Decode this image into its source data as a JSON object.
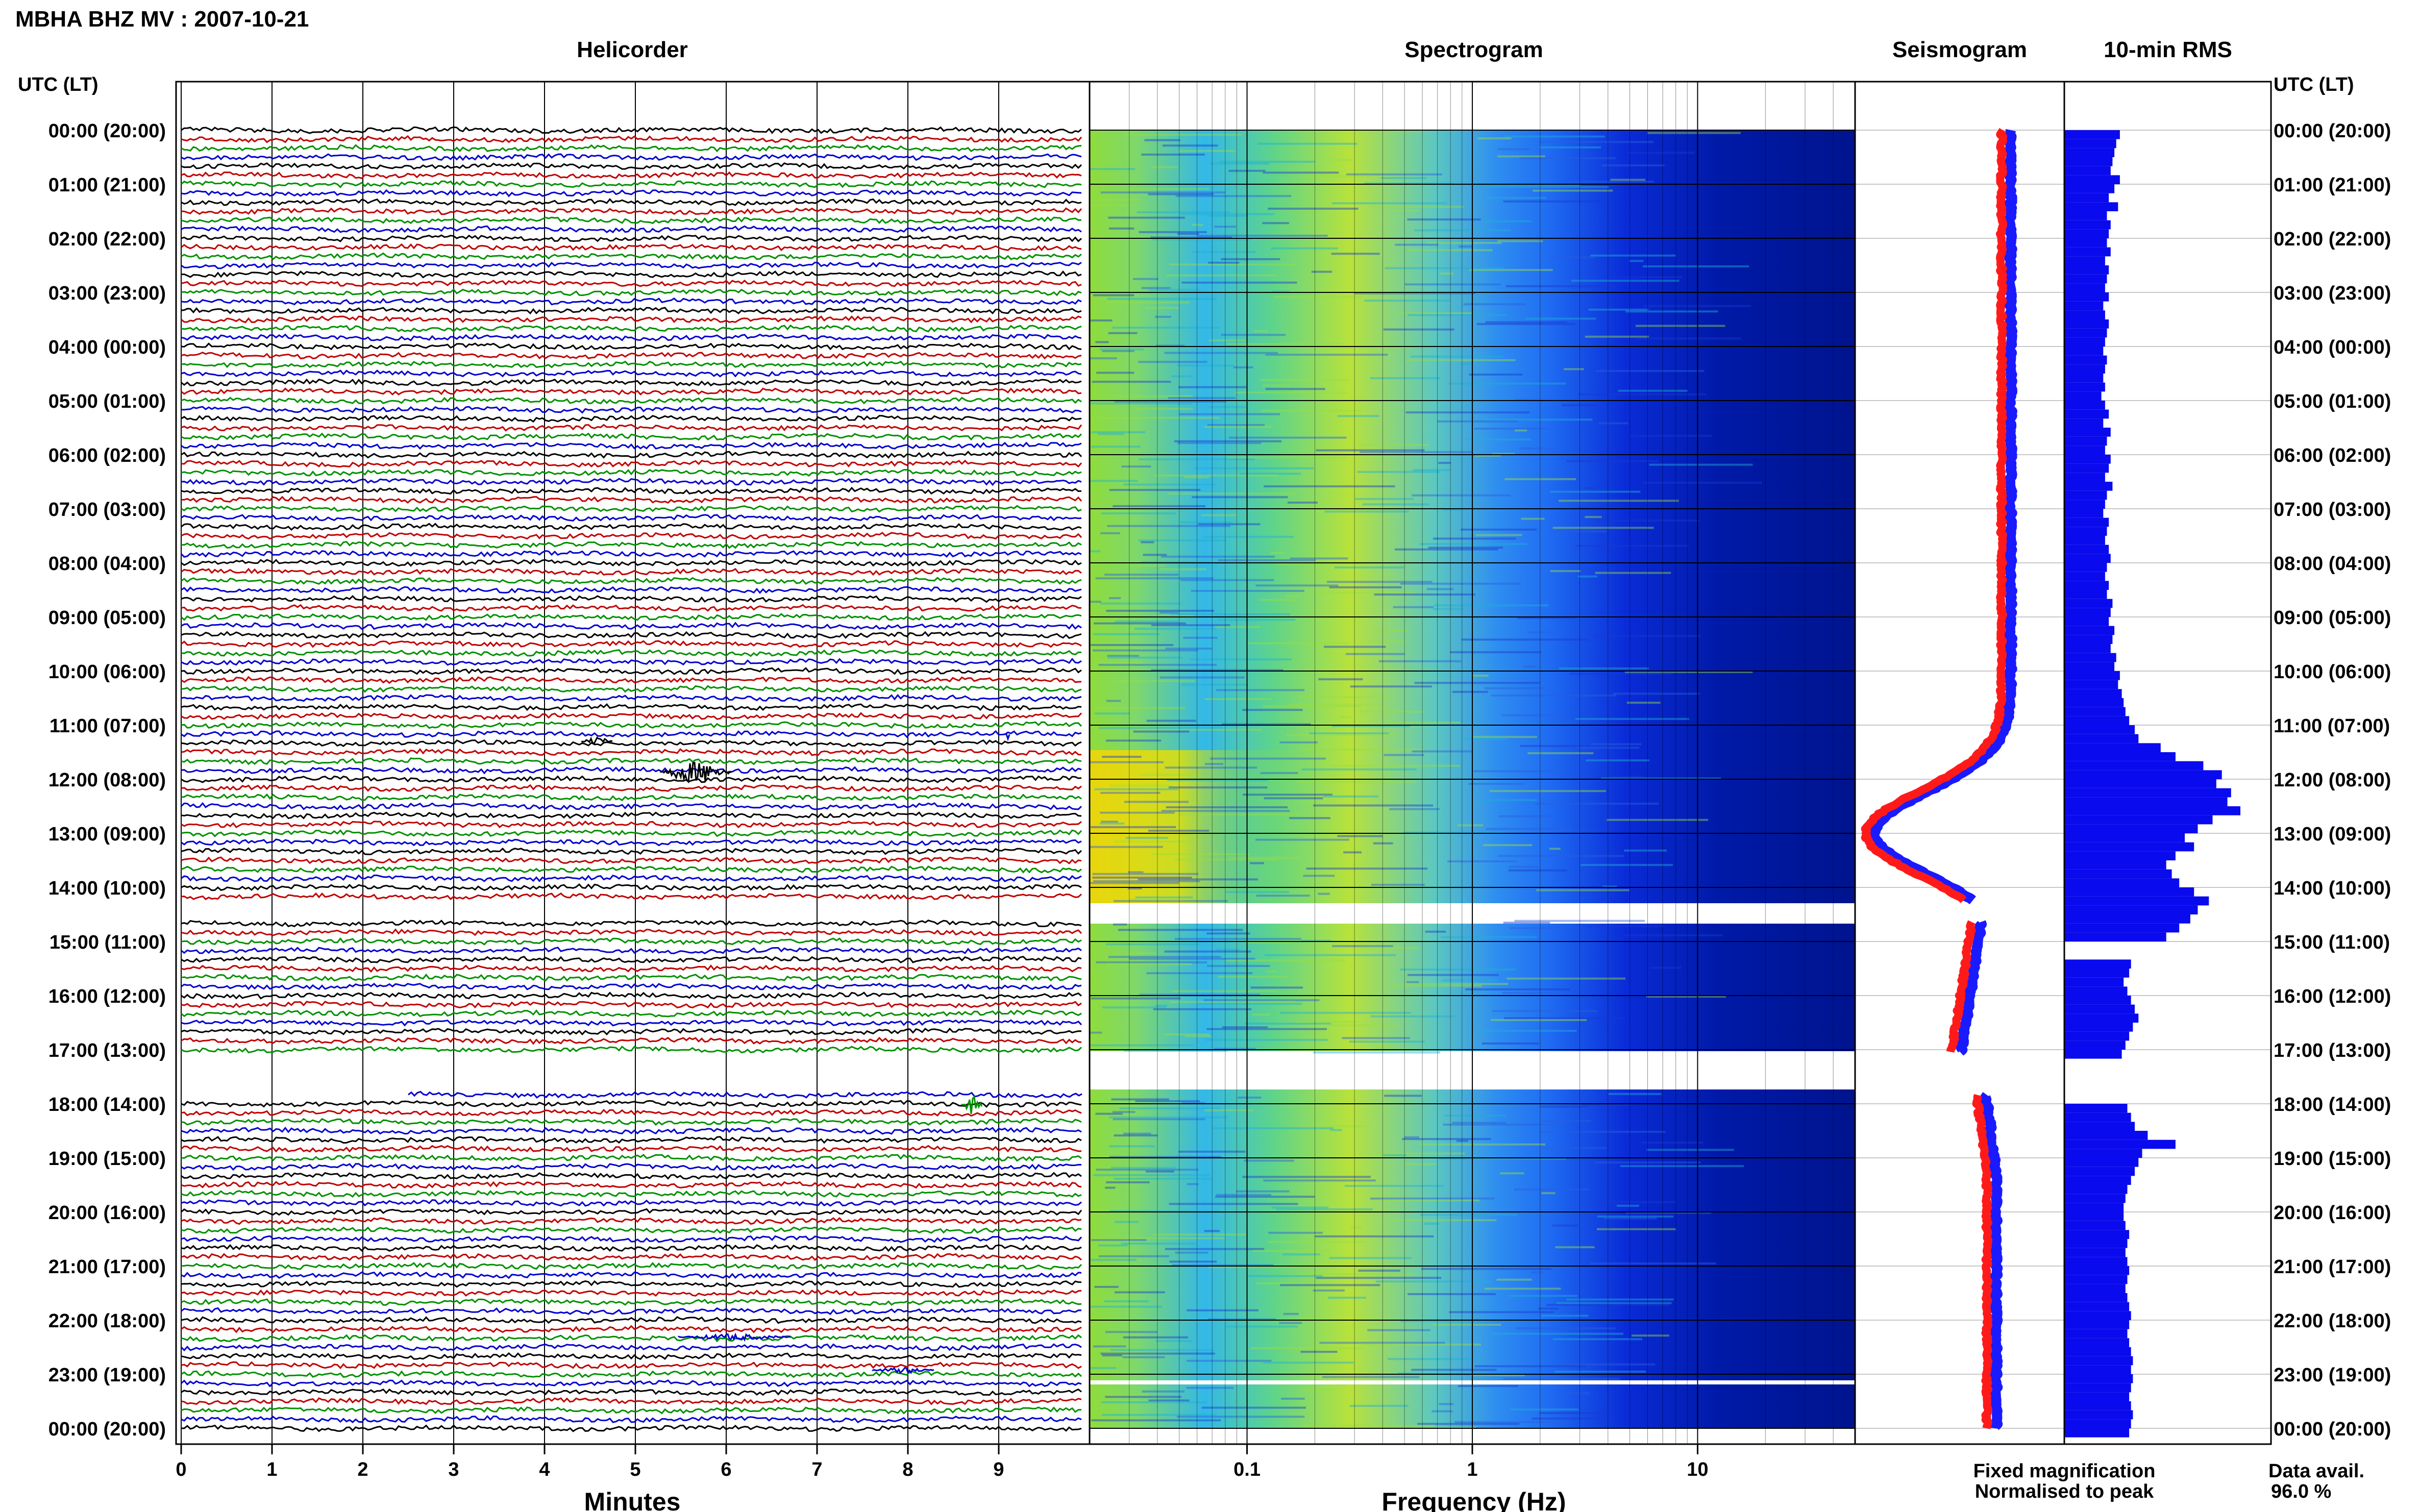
{
  "header": {
    "station_title": "MBHA BHZ MV : 2007-10-21"
  },
  "panels": {
    "helicorder": "Helicorder",
    "spectrogram": "Spectrogram",
    "seismogram": "Seismogram",
    "rms": "10-min RMS"
  },
  "axes": {
    "left_label": "UTC (LT)",
    "right_label": "UTC (LT)",
    "minutes_label": "Minutes",
    "frequency_label": "Frequency (Hz)"
  },
  "legend": {
    "fixed": "Fixed magnification",
    "normalised": "Normalised to peak",
    "fixed_color": "#1a1aff",
    "normalised_color": "#ff1a1a"
  },
  "availability": {
    "label": "Data avail.",
    "value": "96.0 %"
  },
  "chart_data": {
    "type": "helicorder",
    "time_labels": [
      "00:00 (20:00)",
      "01:00 (21:00)",
      "02:00 (22:00)",
      "03:00 (23:00)",
      "04:00 (00:00)",
      "05:00 (01:00)",
      "06:00 (02:00)",
      "07:00 (03:00)",
      "08:00 (04:00)",
      "09:00 (05:00)",
      "10:00 (06:00)",
      "11:00 (07:00)",
      "12:00 (08:00)",
      "13:00 (09:00)",
      "14:00 (10:00)",
      "15:00 (11:00)",
      "16:00 (12:00)",
      "17:00 (13:00)",
      "18:00 (14:00)",
      "19:00 (15:00)",
      "20:00 (16:00)",
      "21:00 (17:00)",
      "22:00 (18:00)",
      "23:00 (19:00)",
      "00:00 (20:00)"
    ],
    "minute_ticks": [
      "0",
      "1",
      "2",
      "3",
      "4",
      "5",
      "6",
      "7",
      "8",
      "9"
    ],
    "minute_range": [
      0,
      10
    ],
    "frequency_ticks": [
      {
        "label": "0.1",
        "value": 0.1
      },
      {
        "label": "1",
        "value": 1
      },
      {
        "label": "10",
        "value": 10
      }
    ],
    "frequency_range": [
      0.02,
      50
    ],
    "frequency_scale": "log",
    "trace_colors": [
      "#000000",
      "#c00000",
      "#009000",
      "#0000d0"
    ],
    "data_gaps_hours": [
      [
        14.25,
        14.6
      ],
      [
        17.05,
        17.8
      ]
    ],
    "events_hours": [
      11.25,
      11.85,
      12.0,
      18.0
    ],
    "rms_10min": [
      0.3,
      0.28,
      0.27,
      0.26,
      0.25,
      0.3,
      0.27,
      0.24,
      0.29,
      0.23,
      0.25,
      0.24,
      0.23,
      0.25,
      0.22,
      0.24,
      0.23,
      0.22,
      0.24,
      0.21,
      0.22,
      0.24,
      0.23,
      0.22,
      0.21,
      0.23,
      0.22,
      0.21,
      0.22,
      0.2,
      0.22,
      0.24,
      0.21,
      0.25,
      0.23,
      0.22,
      0.25,
      0.24,
      0.22,
      0.26,
      0.23,
      0.22,
      0.21,
      0.24,
      0.23,
      0.22,
      0.24,
      0.25,
      0.23,
      0.22,
      0.24,
      0.23,
      0.26,
      0.25,
      0.24,
      0.27,
      0.26,
      0.25,
      0.28,
      0.27,
      0.3,
      0.29,
      0.31,
      0.32,
      0.33,
      0.35,
      0.38,
      0.4,
      0.52,
      0.6,
      0.75,
      0.85,
      0.82,
      0.9,
      0.88,
      0.95,
      0.8,
      0.72,
      0.65,
      0.7,
      0.6,
      0.55,
      0.58,
      0.62,
      0.7,
      0.78,
      0.72,
      0.68,
      0.62,
      0.55,
      0.0,
      0.0,
      0.36,
      0.35,
      0.32,
      0.34,
      0.36,
      0.38,
      0.4,
      0.37,
      0.35,
      0.33,
      0.31,
      0.0,
      0.0,
      0.0,
      0.0,
      0.0,
      0.34,
      0.36,
      0.38,
      0.45,
      0.6,
      0.42,
      0.4,
      0.38,
      0.36,
      0.34,
      0.33,
      0.32,
      0.32,
      0.33,
      0.35,
      0.34,
      0.33,
      0.34,
      0.35,
      0.34,
      0.33,
      0.34,
      0.35,
      0.36,
      0.35,
      0.34,
      0.35,
      0.36,
      0.37,
      0.36,
      0.37,
      0.36,
      0.35,
      0.36,
      0.37,
      0.36,
      0.35
    ]
  }
}
